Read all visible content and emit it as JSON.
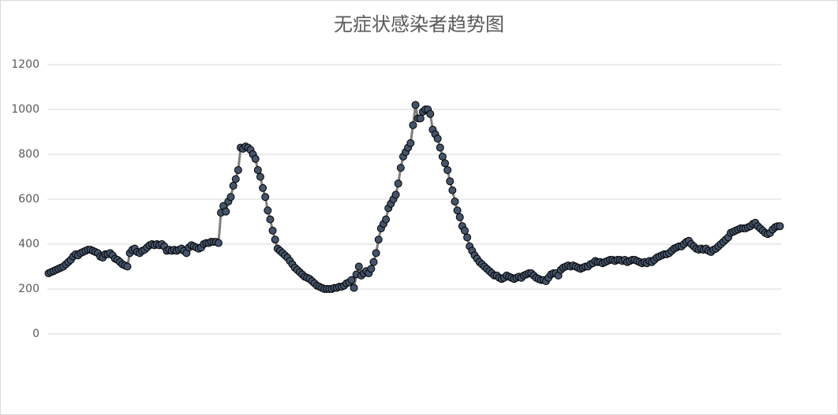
{
  "chart_data": {
    "type": "line",
    "title": "无症状感染者趋势图",
    "values": [
      270,
      275,
      280,
      285,
      290,
      295,
      300,
      310,
      320,
      330,
      345,
      355,
      350,
      360,
      365,
      370,
      375,
      375,
      370,
      365,
      360,
      345,
      340,
      355,
      355,
      360,
      350,
      335,
      330,
      320,
      310,
      305,
      300,
      360,
      375,
      380,
      365,
      360,
      370,
      375,
      385,
      395,
      400,
      395,
      400,
      395,
      400,
      390,
      370,
      375,
      370,
      375,
      370,
      375,
      380,
      370,
      360,
      385,
      395,
      390,
      385,
      380,
      385,
      400,
      405,
      405,
      410,
      410,
      410,
      405,
      540,
      570,
      545,
      590,
      610,
      660,
      690,
      730,
      830,
      825,
      835,
      830,
      820,
      800,
      780,
      730,
      700,
      650,
      610,
      550,
      510,
      460,
      420,
      380,
      370,
      360,
      350,
      340,
      325,
      310,
      295,
      285,
      275,
      265,
      255,
      250,
      245,
      235,
      225,
      215,
      210,
      205,
      200,
      200,
      200,
      200,
      205,
      205,
      210,
      210,
      215,
      225,
      230,
      240,
      205,
      265,
      300,
      260,
      270,
      280,
      270,
      290,
      320,
      360,
      420,
      470,
      490,
      510,
      560,
      580,
      600,
      620,
      670,
      740,
      790,
      810,
      830,
      850,
      930,
      1020,
      960,
      960,
      990,
      1000,
      1000,
      980,
      910,
      890,
      870,
      830,
      790,
      760,
      730,
      680,
      640,
      590,
      550,
      520,
      480,
      460,
      430,
      390,
      370,
      350,
      335,
      320,
      310,
      300,
      290,
      280,
      270,
      260,
      260,
      250,
      245,
      250,
      260,
      255,
      250,
      245,
      250,
      255,
      250,
      260,
      265,
      270,
      270,
      260,
      250,
      245,
      240,
      240,
      235,
      250,
      265,
      270,
      270,
      260,
      285,
      295,
      300,
      305,
      300,
      305,
      300,
      295,
      290,
      295,
      300,
      300,
      310,
      315,
      325,
      320,
      320,
      315,
      320,
      325,
      330,
      330,
      325,
      330,
      330,
      325,
      330,
      320,
      325,
      330,
      330,
      325,
      320,
      315,
      320,
      315,
      325,
      320,
      330,
      340,
      345,
      350,
      355,
      355,
      360,
      370,
      380,
      385,
      390,
      390,
      400,
      410,
      415,
      400,
      390,
      380,
      375,
      380,
      375,
      380,
      370,
      365,
      375,
      380,
      390,
      400,
      410,
      420,
      430,
      450,
      455,
      460,
      465,
      470,
      470,
      470,
      475,
      480,
      490,
      495,
      480,
      470,
      460,
      450,
      445,
      450,
      465,
      475,
      480,
      480
    ],
    "color": "#7f7f7f",
    "marker_color": "#44546a",
    "ylim": [
      0,
      1200
    ],
    "yticks": [
      0,
      200,
      400,
      600,
      800,
      1000,
      1200
    ],
    "grid": true
  }
}
